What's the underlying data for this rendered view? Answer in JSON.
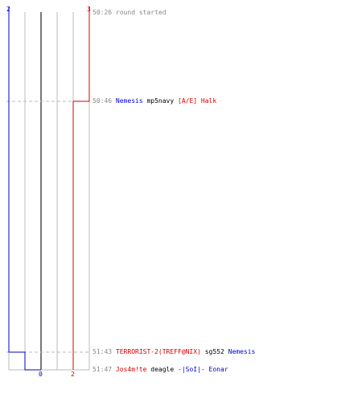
{
  "colors": {
    "team_a": "#0000cc",
    "team_b": "#cc0000",
    "grid": "#bbbbbb",
    "center_line": "#777777",
    "dash": "#bbbbbb",
    "time": "#888888"
  },
  "counters": {
    "team_a_start": "2",
    "team_b_start": "3",
    "team_a_end": "0",
    "team_b_end": "2"
  },
  "team_a_alive": [
    2,
    2,
    2,
    1,
    0
  ],
  "team_b_alive": [
    3,
    3,
    2,
    2,
    2
  ],
  "events": [
    {
      "time": "50:26",
      "text": "round started",
      "killer": "",
      "killer_team": "",
      "weapon": "",
      "victim": "",
      "victim_team": ""
    },
    {
      "time": "50:46",
      "text": "",
      "killer": "Nemesis",
      "killer_team": "a",
      "weapon": "mp5navy",
      "victim": "[A/E] Halk",
      "victim_team": "b"
    },
    {
      "time": "51:43",
      "text": "",
      "killer": "TERRORIST-2(TREFF@NIX)",
      "killer_team": "b",
      "weapon": "sg552",
      "victim": "Nemesis",
      "victim_team": "a"
    },
    {
      "time": "51:47",
      "text": "",
      "killer": "Jos4m!te",
      "killer_team": "b",
      "weapon": "deagle",
      "victim": "-|SoI|- Eonar",
      "victim_team": "a"
    }
  ]
}
